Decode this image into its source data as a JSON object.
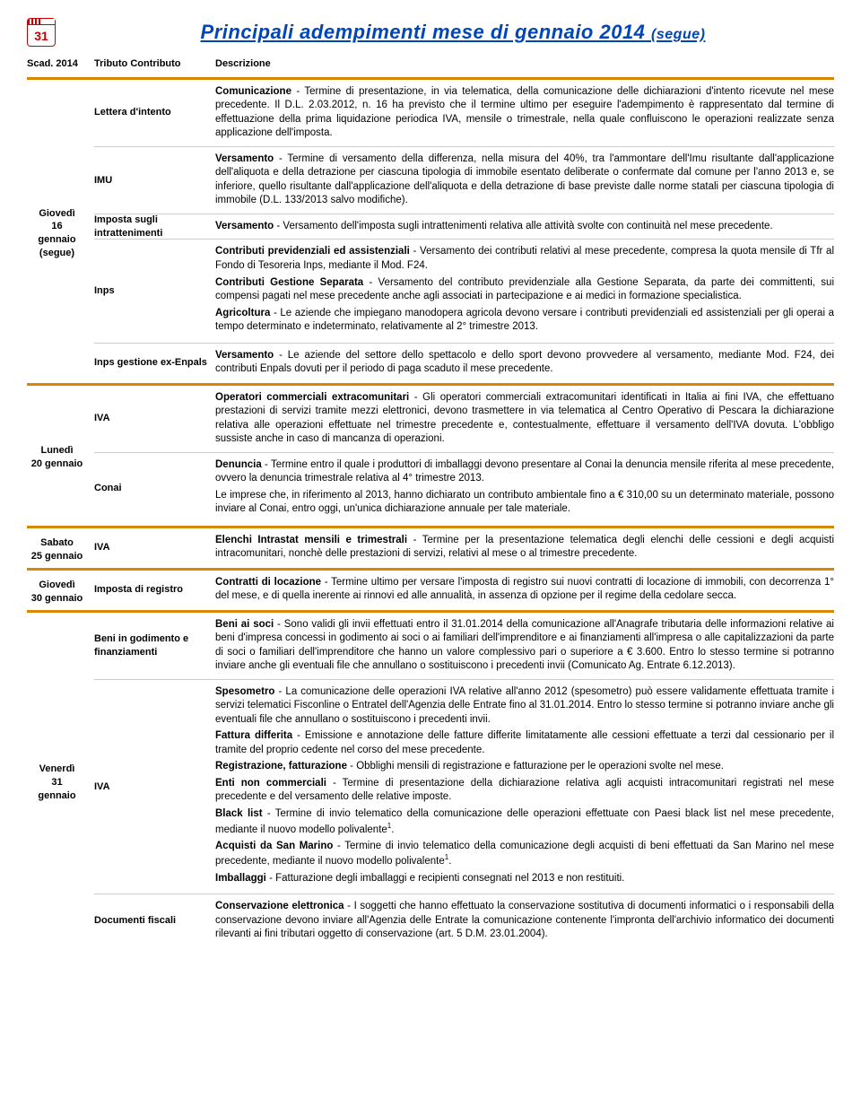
{
  "header": {
    "calendar_day": "31",
    "title_main": "Principali adempimenti mese di gennaio 2014",
    "title_suffix": "(segue)"
  },
  "columns": {
    "date": "Scad. 2014",
    "tributo": "Tributo Contributo",
    "descrizione": "Descrizione"
  },
  "sections": [
    {
      "date": "Giovedì\n16\ngennaio\n(segue)",
      "rows": [
        {
          "tributo": "Lettera d'intento",
          "desc": "<b>Comunicazione</b> - Termine di presentazione, in via telematica, della comunicazione delle dichiarazioni d'intento ricevute nel mese precedente. Il D.L. 2.03.2012, n. 16 ha previsto che il termine ultimo per eseguire l'adempimento è rappresentato dal termine di effettuazione della prima liquidazione periodica IVA, mensile o trimestrale, nella quale confluiscono le operazioni realizzate senza applicazione dell'imposta."
        },
        {
          "tributo": "IMU",
          "desc": "<b>Versamento</b> - Termine di versamento della differenza, nella misura del 40%, tra l'ammontare dell'Imu risultante dall'applicazione dell'aliquota e della detrazione per ciascuna tipologia di immobile esentato deliberate o confermate dal comune per l'anno 2013 e, se inferiore, quello risultante dall'applicazione dell'aliquota e della detrazione di base previste dalle norme statali per ciascuna tipologia di immobile (D.L. 133/2013 salvo modifiche)."
        },
        {
          "tributo": "Imposta sugli intrattenimenti",
          "desc": "<b>Versamento</b> - Versamento dell'imposta sugli intrattenimenti relativa alle attività svolte con continuità nel mese precedente."
        },
        {
          "tributo": "Inps",
          "desc": "<p><b>Contributi previdenziali ed assistenziali</b> - Versamento dei contributi relativi al mese precedente, compresa la quota mensile di Tfr al Fondo di Tesoreria Inps, mediante il Mod. F24.</p><p><b>Contributi Gestione Separata</b> - Versamento del contributo previdenziale alla Gestione Separata, da parte dei committenti, sui compensi pagati nel mese precedente anche agli associati in partecipazione e ai medici in formazione specialistica.</p><p><b>Agricoltura</b> - Le aziende che impiegano manodopera agricola devono versare i contributi previdenziali ed assistenziali per gli operai a tempo determinato e indeterminato, relativamente al 2° trimestre 2013.</p>"
        },
        {
          "tributo": "Inps gestione ex-Enpals",
          "desc": "<b>Versamento</b> - Le aziende del settore dello spettacolo e dello sport devono provvedere al versamento, mediante Mod. F24, dei contributi Enpals dovuti per il periodo di paga scaduto il mese precedente."
        }
      ]
    },
    {
      "date": "Lunedì\n20 gennaio",
      "rows": [
        {
          "tributo": "IVA",
          "desc": "<b>Operatori commerciali extracomunitari</b> - Gli operatori commerciali extracomunitari identificati in Italia ai fini IVA, che effettuano prestazioni di servizi tramite mezzi elettronici, devono trasmettere in via telematica al Centro Operativo di Pescara la dichiarazione relativa alle operazioni effettuate nel trimestre precedente e, contestualmente, effettuare il versamento dell'IVA dovuta. L'obbligo sussiste anche in caso di mancanza di operazioni."
        },
        {
          "tributo": "Conai",
          "desc": "<p><b>Denuncia</b> - Termine entro il quale i produttori di imballaggi devono presentare al Conai la denuncia mensile riferita al mese precedente, ovvero la denuncia trimestrale relativa al 4° trimestre 2013.</p><p>Le imprese che, in riferimento al 2013, hanno dichiarato un contributo ambientale fino a € 310,00 su un determinato materiale, possono inviare al Conai, entro oggi, un'unica dichiarazione annuale per tale materiale.</p>"
        }
      ]
    },
    {
      "date": "Sabato\n25 gennaio",
      "rows": [
        {
          "tributo": "IVA",
          "desc": "<b>Elenchi Intrastat mensili e trimestrali</b> - Termine per la presentazione telematica degli elenchi delle cessioni e degli acquisti intracomunitari, nonchè delle prestazioni di servizi, relativi al mese o al trimestre precedente."
        }
      ]
    },
    {
      "date": "Giovedì\n30 gennaio",
      "rows": [
        {
          "tributo": "Imposta di registro",
          "desc": "<b>Contratti di locazione</b> - Termine ultimo per versare l'imposta di registro sui nuovi contratti di locazione di immobili, con decorrenza 1° del mese, e di quella inerente ai rinnovi ed alle annualità, in assenza di opzione per il regime della cedolare secca."
        }
      ]
    },
    {
      "date": "Venerdì\n31\ngennaio",
      "rows": [
        {
          "tributo": "Beni in godimento e finanziamenti",
          "desc": "<b>Beni ai soci</b> - Sono validi gli invii effettuati entro il 31.01.2014 della comunicazione all'Anagrafe tributaria delle informazioni relative ai beni d'impresa concessi in godimento ai soci o ai familiari dell'imprenditore e ai finanziamenti all'impresa o alle capitalizzazioni da parte di soci o familiari dell'imprenditore che hanno un valore complessivo pari o superiore a € 3.600. Entro lo stesso termine si potranno inviare anche gli eventuali file che annullano o sostituiscono i precedenti invii (Comunicato Ag. Entrate 6.12.2013)."
        },
        {
          "tributo": "IVA",
          "desc": "<p><b>Spesometro</b> - La comunicazione delle operazioni IVA relative all'anno 2012 (spesometro) può essere validamente effettuata tramite i servizi telematici Fisconline o Entratel dell'Agenzia delle Entrate fino al 31.01.2014. Entro lo stesso termine si potranno inviare anche gli eventuali file che annullano o sostituiscono i precedenti invii.</p><p><b>Fattura differita</b> - Emissione e annotazione delle fatture differite limitatamente alle cessioni effettuate a terzi dal cessionario per il tramite del proprio cedente nel corso del mese precedente.</p><p><b>Registrazione, fatturazione</b> - Obblighi mensili di registrazione e fatturazione per le operazioni svolte nel mese.</p><p><b>Enti non commerciali</b> - Termine di presentazione della dichiarazione relativa agli acquisti intracomunitari registrati nel mese precedente e del versamento delle relative imposte.</p><p><b>Black list</b> - Termine di invio telematico della comunicazione delle operazioni effettuate con Paesi black list nel mese precedente, mediante il nuovo modello polivalente<sup>1</sup>.</p><p><b>Acquisti da San Marino</b> - Termine di invio telematico della comunicazione degli acquisti di beni effettuati da San Marino nel mese precedente, mediante il nuovo modello polivalente<sup>1</sup>.</p><p><b>Imballaggi</b> - Fatturazione degli imballaggi e recipienti consegnati nel 2013 e non restituiti.</p>"
        },
        {
          "tributo": "Documenti fiscali",
          "desc": "<b>Conservazione elettronica</b> - I soggetti che hanno effettuato la conservazione sostitutiva di documenti informatici o i responsabili della conservazione devono inviare all'Agenzia delle Entrate la comunicazione contenente l'impronta dell'archivio informatico dei documenti rilevanti ai fini tributari oggetto di conservazione (art. 5 D.M. 23.01.2004)."
        }
      ]
    }
  ]
}
